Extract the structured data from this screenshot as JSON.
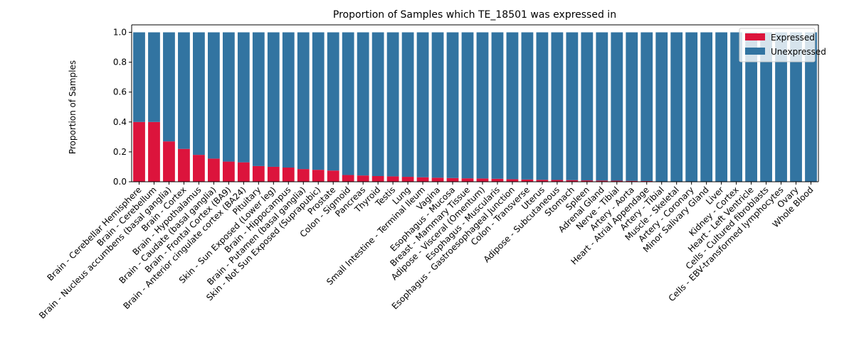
{
  "chart_data": {
    "type": "bar",
    "stacked": true,
    "title": "Proportion of Samples which TE_18501 was expressed in",
    "xlabel": "",
    "ylabel": "Proportion of Samples",
    "ylim": [
      0,
      1.05
    ],
    "yticks": [
      "0.0",
      "0.2",
      "0.4",
      "0.6",
      "0.8",
      "1.0"
    ],
    "legend_position": "top-right",
    "categories": [
      "Brain - Cerebellar Hemisphere",
      "Brain - Cerebellum",
      "Brain - Nucleus accumbens (basal ganglia)",
      "Brain - Cortex",
      "Brain - Hypothalamus",
      "Brain - Caudate (basal ganglia)",
      "Brain - Frontal Cortex (BA9)",
      "Brain - Anterior cingulate cortex (BA24)",
      "Pituitary",
      "Skin - Sun Exposed (Lower leg)",
      "Brain - Hippocampus",
      "Brain - Putamen (basal ganglia)",
      "Skin - Not Sun Exposed (Suprapubic)",
      "Prostate",
      "Colon - Sigmoid",
      "Pancreas",
      "Thyroid",
      "Testis",
      "Lung",
      "Small Intestine - Terminal Ileum",
      "Vagina",
      "Esophagus - Mucosa",
      "Breast - Mammary Tissue",
      "Adipose - Visceral (Omentum)",
      "Esophagus - Muscularis",
      "Esophagus - Gastroesophageal Junction",
      "Colon - Transverse",
      "Uterus",
      "Adipose - Subcutaneous",
      "Stomach",
      "Spleen",
      "Adrenal Gland",
      "Nerve - Tibial",
      "Artery - Aorta",
      "Heart - Atrial Appendage",
      "Artery - Tibial",
      "Muscle - Skeletal",
      "Artery - Coronary",
      "Minor Salivary Gland",
      "Liver",
      "Kidney - Cortex",
      "Heart - Left Ventricle",
      "Cells - Cultured fibroblasts",
      "Cells - EBV-transformed lymphocytes",
      "Ovary",
      "Whole Blood"
    ],
    "series": [
      {
        "name": "Expressed",
        "color": "#dc143c",
        "values": [
          0.4,
          0.4,
          0.27,
          0.22,
          0.18,
          0.155,
          0.135,
          0.13,
          0.105,
          0.1,
          0.095,
          0.085,
          0.08,
          0.075,
          0.045,
          0.042,
          0.038,
          0.036,
          0.033,
          0.03,
          0.027,
          0.025,
          0.023,
          0.022,
          0.02,
          0.017,
          0.015,
          0.013,
          0.012,
          0.011,
          0.009,
          0.008,
          0.007,
          0.006,
          0.005,
          0,
          0,
          0,
          0,
          0,
          0,
          0,
          0,
          0,
          0,
          0
        ]
      },
      {
        "name": "Unexpressed",
        "color": "#3274a1",
        "values": [
          0.6,
          0.6,
          0.73,
          0.78,
          0.82,
          0.845,
          0.865,
          0.87,
          0.895,
          0.9,
          0.905,
          0.915,
          0.92,
          0.925,
          0.955,
          0.958,
          0.962,
          0.964,
          0.967,
          0.97,
          0.973,
          0.975,
          0.977,
          0.978,
          0.98,
          0.983,
          0.985,
          0.987,
          0.988,
          0.989,
          0.991,
          0.992,
          0.993,
          0.994,
          0.995,
          1,
          1,
          1,
          1,
          1,
          1,
          1,
          1,
          1,
          1,
          1
        ]
      }
    ]
  }
}
